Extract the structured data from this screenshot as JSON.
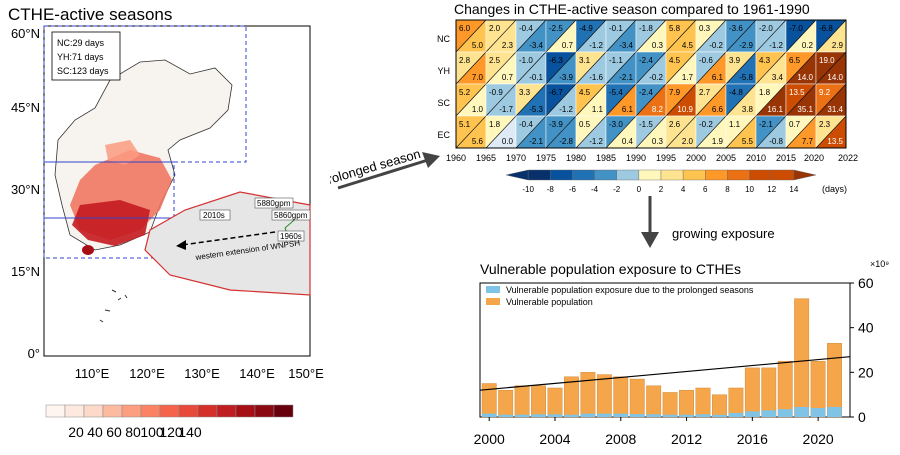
{
  "map": {
    "title": "CTHE-active seasons",
    "lat_labels": [
      "60°N",
      "45°N",
      "30°N",
      "15°N",
      "0°"
    ],
    "lon_labels": [
      "110°E",
      "120°E",
      "130°E",
      "140°E",
      "150°E"
    ],
    "legend_lines": [
      "NC:29 days",
      "YH:71 days",
      "SC:123 days"
    ],
    "wnpsh_labels": [
      "2010s",
      "5880gpm",
      "5860gpm",
      "1960s"
    ],
    "arrow_label": "western extension of WNPSH",
    "colorbar_ticks": [
      "20",
      "40",
      "60",
      "80",
      "100",
      "120",
      "140"
    ],
    "colorbar_colors": [
      "#fff5f0",
      "#fde9e0",
      "#fcd9c8",
      "#fcbba1",
      "#fc9e80",
      "#fb8262",
      "#f4634a",
      "#e84a3a",
      "#d52f2a",
      "#bf1d21",
      "#a50f15",
      "#8b0a12",
      "#67000d"
    ]
  },
  "flow": {
    "arrow1_label": "prolonged season",
    "arrow2_label": "growing exposure"
  },
  "heatmap": {
    "title": "Changes in CTHE-active season compared to 1961-1990",
    "rows": [
      "NC",
      "YH",
      "SC",
      "EC"
    ],
    "x_ticks": [
      "1960",
      "1965",
      "1970",
      "1975",
      "1980",
      "1985",
      "1990",
      "1995",
      "2000",
      "2005",
      "2010",
      "2015",
      "2020",
      "2022"
    ],
    "cells": [
      {
        "u": [
          "6.0",
          "2.0",
          "-0.4",
          "-2.5",
          "-4.9",
          "-0.1",
          "-1.8",
          "5.8",
          "0.3",
          "-3.6",
          "-2.0",
          "-7.0",
          "-6.8"
        ],
        "l": [
          "5.0",
          "2.3",
          "-3.4",
          "0.7",
          "-1.2",
          "-3.4",
          "0.3",
          "4.5",
          "-0.2",
          "-2.9",
          "-1.2",
          "0.2",
          "2.9"
        ]
      },
      {
        "u": [
          "2.8",
          "2.5",
          "-1.0",
          "-6.3",
          "3.1",
          "-1.1",
          "-2.4",
          "4.5",
          "-0.6",
          "3.9",
          "4.3",
          "6.5",
          "19.0"
        ],
        "l": [
          "7.0",
          "0.7",
          "-0.1",
          "-3.9",
          "-1.6",
          "-2.1",
          "-0.2",
          "1.7",
          "6.1",
          "-5.8",
          "3.4",
          "14.0",
          "14.0"
        ]
      },
      {
        "u": [
          "5.2",
          "-0.9",
          "3.3",
          "-6.7",
          "4.5",
          "-5.4",
          "-2.4",
          "7.9",
          "2.7",
          "-4.8",
          "1.8",
          "13.5",
          "9.2"
        ],
        "l": [
          "1.0",
          "-1.7",
          "-5.3",
          "-1.2",
          "1.1",
          "6.1",
          "8.2",
          "10.9",
          "6.6",
          "3.8",
          "16.1",
          "35.1",
          "31.4"
        ]
      },
      {
        "u": [
          "5.1",
          "1.8",
          "-0.4",
          "-3.9",
          "0.5",
          "-3.0",
          "-1.5",
          "2.6",
          "-0.2",
          "1.1",
          "-2.1",
          "0.7",
          "2.3"
        ],
        "l": [
          "5.6",
          "0.0",
          "-2.1",
          "-2.8",
          "-1.2",
          "0.4",
          "0.3",
          "2.0",
          "1.9",
          "5.5",
          "-0.8",
          "7.7",
          "13.5"
        ]
      }
    ],
    "colorbar_ticks": [
      "-10",
      "-8",
      "-6",
      "-4",
      "-2",
      "0",
      "2",
      "4",
      "6",
      "8",
      "10",
      "12",
      "14"
    ],
    "colorbar_unit": "(days)"
  },
  "bar_chart": {
    "title": "Vulnerable population exposure to CTHEs",
    "multiplier": "×10⁹",
    "legend": [
      "Vulnerable population exposure due to the prolonged seasons",
      "Vulnerable population"
    ],
    "series_colors": {
      "prolonged": "#7fc4e6",
      "vulnerable": "#f5a54a"
    }
  },
  "chart_data": {
    "type": "bar",
    "title": "Vulnerable population exposure to CTHEs",
    "categories": [
      "2000",
      "2001",
      "2002",
      "2003",
      "2004",
      "2005",
      "2006",
      "2007",
      "2008",
      "2009",
      "2010",
      "2011",
      "2012",
      "2013",
      "2014",
      "2015",
      "2016",
      "2017",
      "2018",
      "2019",
      "2020",
      "2021"
    ],
    "x_tick_labels": [
      "2000",
      "2004",
      "2008",
      "2012",
      "2016",
      "2020"
    ],
    "series": [
      {
        "name": "Vulnerable population",
        "values": [
          15,
          12,
          14,
          14,
          13,
          18,
          20,
          19,
          18,
          17,
          14,
          11,
          12,
          13,
          10,
          13,
          22,
          22,
          25,
          53,
          25,
          33
        ]
      },
      {
        "name": "Vulnerable population exposure due to the prolonged seasons",
        "values": [
          1.5,
          1.0,
          1.0,
          1.2,
          1.2,
          1.0,
          1.5,
          1.5,
          1.5,
          1.3,
          1.2,
          1.0,
          1.0,
          1.2,
          1.0,
          1.8,
          2.5,
          3.0,
          3.5,
          4.5,
          4.0,
          4.5
        ]
      }
    ],
    "trend": {
      "start": 12,
      "end": 27
    },
    "ylim": [
      0,
      60
    ],
    "y_ticks": [
      "0",
      "20",
      "40",
      "60"
    ]
  }
}
